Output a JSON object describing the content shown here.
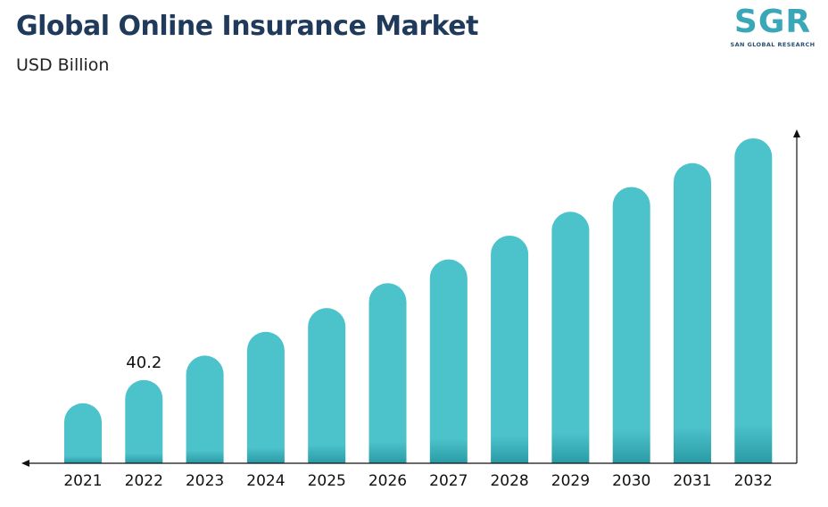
{
  "header": {
    "title": "Global Online Insurance Market",
    "subtitle": "USD Billion"
  },
  "logo": {
    "letters": "SGR",
    "tagline": "SAN GLOBAL RESEARCH",
    "color": "#3aa7b8"
  },
  "colors": {
    "bar": "#4cc2cb",
    "bar_base": "#2a9ba5",
    "axis": "#111111"
  },
  "chart_data": {
    "type": "bar",
    "categories": [
      "2021",
      "2022",
      "2023",
      "2024",
      "2025",
      "2026",
      "2027",
      "2028",
      "2029",
      "2030",
      "2031",
      "2032"
    ],
    "values": [
      29,
      40.2,
      52,
      63.5,
      75,
      87,
      98.5,
      110,
      121.5,
      133.5,
      145,
      157
    ],
    "data_labels": [
      {
        "category": "2022",
        "text": "40.2"
      }
    ],
    "title": "Global Online Insurance Market",
    "ylabel": "USD Billion",
    "ylim": [
      0,
      160
    ],
    "grid": false,
    "legend": "none"
  }
}
